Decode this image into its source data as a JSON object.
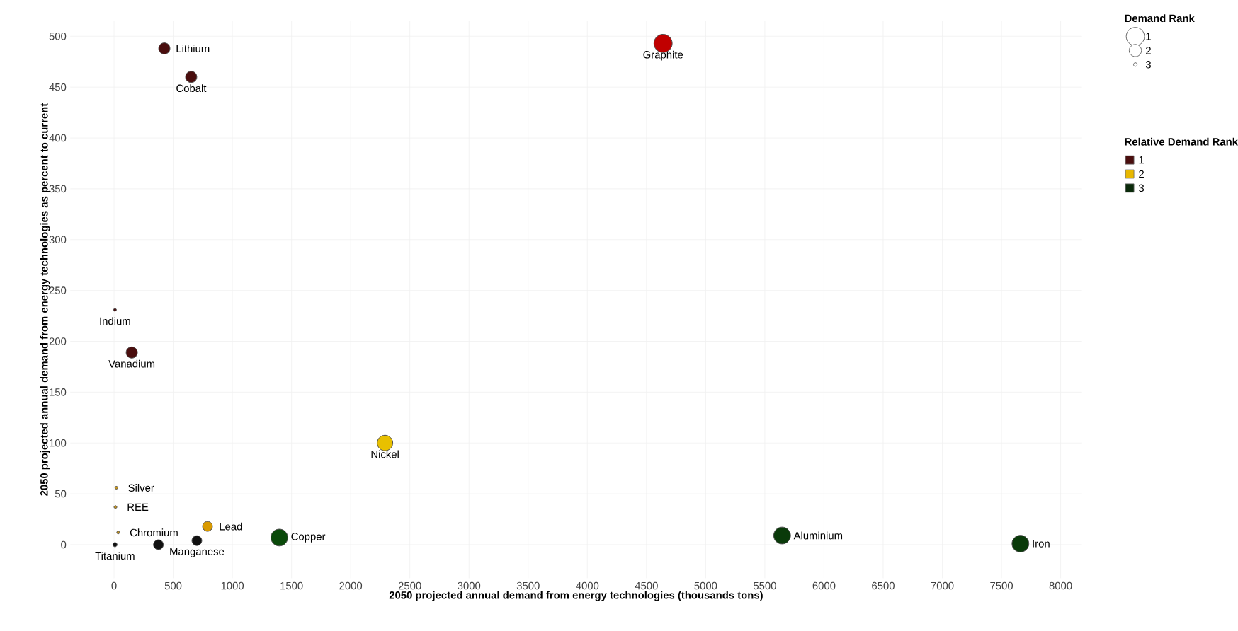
{
  "chart_data": {
    "type": "bubble",
    "xlabel": "2050 projected annual demand from energy technologies (thousands tons)",
    "ylabel": "2050 projected annual demand from energy technologies as percent to current",
    "legend_title": "Relative Demand Rank",
    "xlim": [
      -370,
      8180
    ],
    "ylim": [
      -33,
      515
    ],
    "xticks": [
      0,
      500,
      1000,
      1500,
      2000,
      2500,
      3000,
      3500,
      4000,
      4500,
      5000,
      5500,
      6000,
      6500,
      7000,
      7500,
      8000
    ],
    "yticks": [
      0,
      50,
      100,
      150,
      200,
      250,
      300,
      350,
      400,
      450,
      500
    ],
    "grid": true,
    "legend": "top right",
    "size_legend": [
      {
        "value": 1,
        "label": "1"
      },
      {
        "value": 0.45,
        "label": "2"
      },
      {
        "value": 0.04,
        "label": "3"
      }
    ],
    "series": [
      {
        "name": "1",
        "color": "#4a0e0e",
        "x": [
          425,
          652,
          4640,
          8,
          150
        ],
        "values": [
          488,
          460,
          493,
          231,
          189
        ],
        "sizes": [
          0.38,
          0.38,
          1,
          0.024,
          0.38
        ],
        "colors": [
          "#4a0e0e",
          "#4a0e0e",
          "#c00000",
          "#4a0e0e",
          "#4a0e0e"
        ]
      },
      {
        "name": "2",
        "color": "#e8b800",
        "x": [
          2290,
          790,
          20,
          12,
          35
        ],
        "values": [
          100,
          18,
          56,
          37,
          12
        ],
        "sizes": [
          0.72,
          0.29,
          0.024,
          0.024,
          0.024
        ],
        "colors": [
          "#e8c000",
          "#d99a00",
          "#c8961e",
          "#c8961e",
          "#c8961e"
        ]
      },
      {
        "name": "3",
        "color": "#0a2a0a",
        "x": [
          1397,
          5646,
          7660,
          8,
          375,
          700
        ],
        "values": [
          7,
          9,
          1,
          0,
          0,
          4
        ],
        "sizes": [
          0.85,
          0.85,
          0.85,
          0.053,
          0.29,
          0.29
        ],
        "colors": [
          "#0a4a0a",
          "#0a3a0a",
          "#0a3a0a",
          "#111111",
          "#111111",
          "#111111"
        ]
      }
    ],
    "annotations": [
      {
        "text": "Lithium",
        "x": 425,
        "y": 488
      },
      {
        "text": "Cobalt",
        "x": 652,
        "y": 460
      },
      {
        "text": "Graphite",
        "x": 4640,
        "y": 493
      },
      {
        "text": "Indium",
        "x": 8,
        "y": 231
      },
      {
        "text": "Vanadium",
        "x": 150,
        "y": 189
      },
      {
        "text": "Nickel",
        "x": 2290,
        "y": 100
      },
      {
        "text": "Lead",
        "x": 790,
        "y": 18
      },
      {
        "text": "Silver",
        "x": 20,
        "y": 56
      },
      {
        "text": "REE",
        "x": 12,
        "y": 37
      },
      {
        "text": "Chromium",
        "x": 35,
        "y": 12
      },
      {
        "text": "Copper",
        "x": 1397,
        "y": 7
      },
      {
        "text": "Aluminium",
        "x": 5646,
        "y": 9
      },
      {
        "text": "Iron",
        "x": 7660,
        "y": 1
      },
      {
        "text": "Titanium",
        "x": 8,
        "y": 0
      },
      {
        "text": "Manganese",
        "x": 700,
        "y": 4
      },
      "Demand Rank"
    ]
  }
}
